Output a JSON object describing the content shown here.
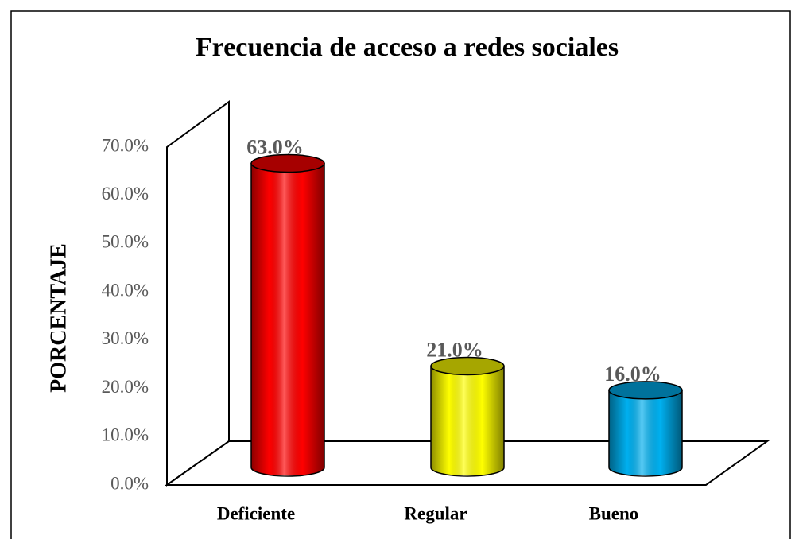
{
  "chart_data": {
    "type": "bar3d",
    "title": "Frecuencia de acceso a redes sociales",
    "y_label": "PORCENTAJE",
    "categories": [
      "Deficiente",
      "Regular",
      "Bueno"
    ],
    "values": [
      63,
      21,
      16
    ],
    "value_labels": [
      "63.0%",
      "21.0%",
      "16.0%"
    ],
    "colors": [
      "#ff0000",
      "#ffff00",
      "#00b0f0"
    ],
    "ylim": [
      0,
      70
    ],
    "yticks": [
      {
        "value": 0,
        "label": "0.0%"
      },
      {
        "value": 10,
        "label": "10.0%"
      },
      {
        "value": 20,
        "label": "20.0%"
      },
      {
        "value": 30,
        "label": "30.0%"
      },
      {
        "value": 40,
        "label": "40.0%"
      },
      {
        "value": 50,
        "label": "50.0%"
      },
      {
        "value": 60,
        "label": "60.0%"
      },
      {
        "value": 70,
        "label": "70.0%"
      }
    ],
    "grid": false
  }
}
